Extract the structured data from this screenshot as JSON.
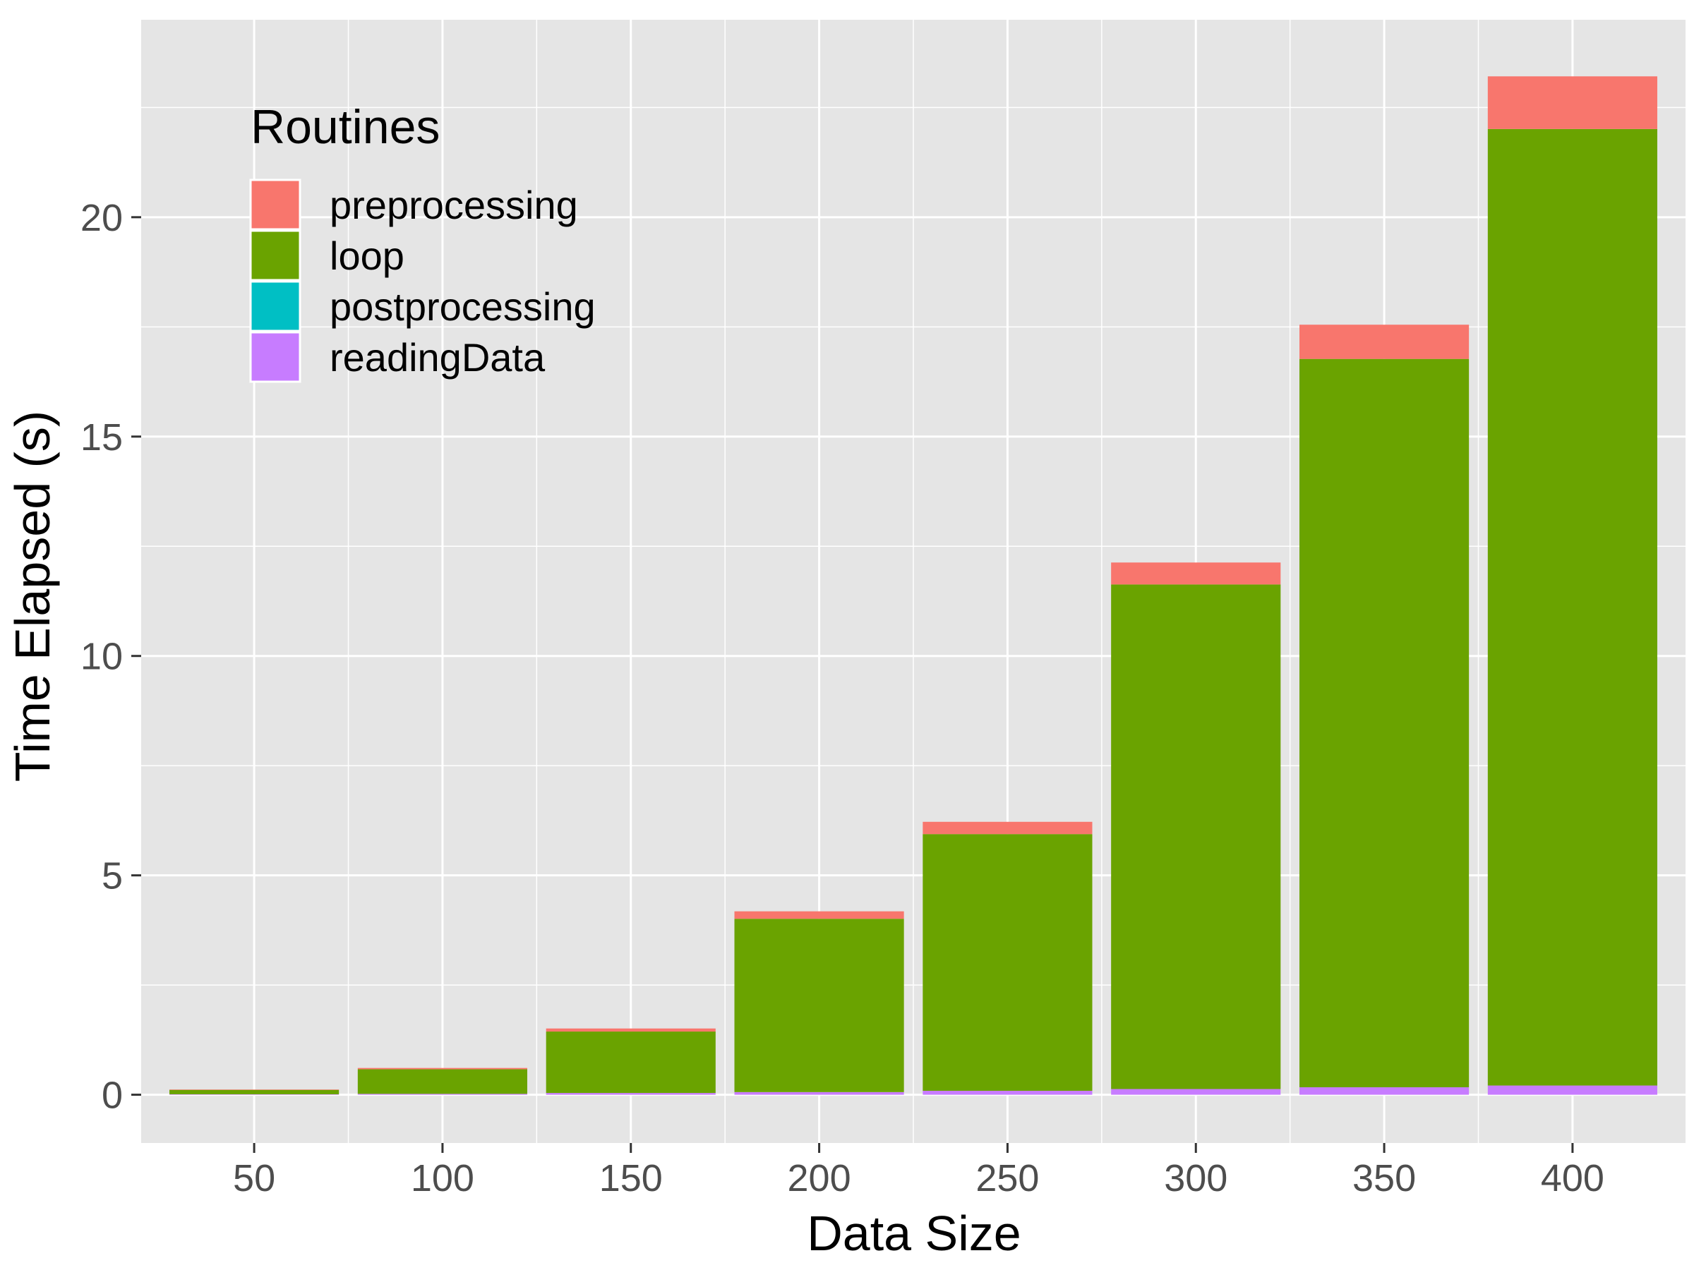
{
  "chart_data": {
    "type": "bar",
    "stacked": true,
    "categories": [
      50,
      100,
      150,
      200,
      250,
      300,
      350,
      400
    ],
    "series": [
      {
        "name": "readingData",
        "color": "#C77CFF",
        "values": [
          0.01,
          0.02,
          0.04,
          0.06,
          0.09,
          0.13,
          0.17,
          0.21
        ]
      },
      {
        "name": "postprocessing",
        "color": "#00BFC4",
        "values": [
          0,
          0,
          0,
          0,
          0,
          0,
          0,
          0
        ]
      },
      {
        "name": "loop",
        "color": "#6AA300",
        "values": [
          0.1,
          0.56,
          1.4,
          3.95,
          5.85,
          11.5,
          16.6,
          21.8
        ]
      },
      {
        "name": "preprocessing",
        "color": "#F8766D",
        "values": [
          0.01,
          0.03,
          0.07,
          0.17,
          0.28,
          0.5,
          0.78,
          1.2
        ]
      }
    ],
    "xlabel": "Data Size",
    "ylabel": "Time Elapsed (s)",
    "xticks": [
      50,
      100,
      150,
      200,
      250,
      300,
      350,
      400
    ],
    "yticks": [
      0,
      5,
      10,
      15,
      20
    ],
    "xlim": [
      20,
      430
    ],
    "ylim": [
      -1.1,
      24.5
    ],
    "grid": true,
    "legend": {
      "title": "Routines",
      "position": "top-left",
      "entries": [
        {
          "label": "preprocessing",
          "color": "#F8766D"
        },
        {
          "label": "loop",
          "color": "#6AA300"
        },
        {
          "label": "postprocessing",
          "color": "#00BFC4"
        },
        {
          "label": "readingData",
          "color": "#C77CFF"
        }
      ]
    },
    "colors": {
      "panel": "#E5E5E5",
      "grid": "#FFFFFF",
      "tick_text": "#4D4D4D",
      "tick_mark": "#333333"
    }
  }
}
